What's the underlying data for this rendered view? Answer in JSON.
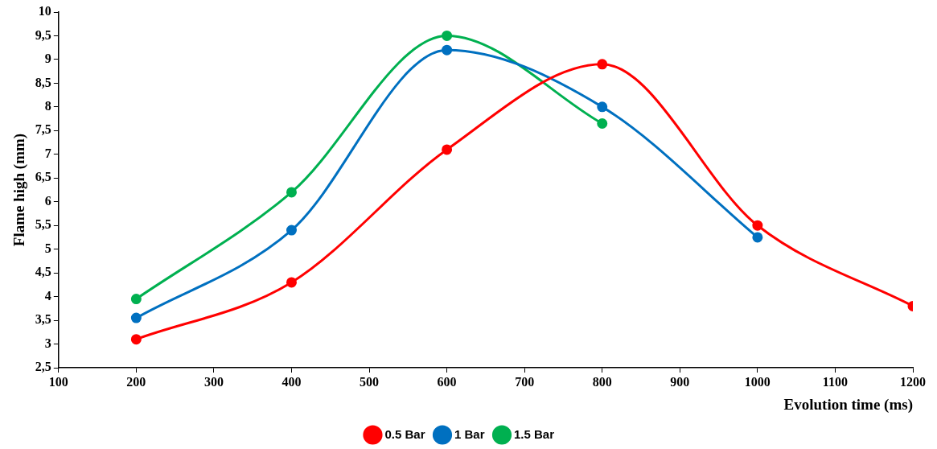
{
  "chart_data": {
    "type": "line",
    "xlabel": "Evolution time (ms)",
    "ylabel": "Flame high (mm)",
    "xlim": [
      100,
      1200
    ],
    "xticks": [
      100,
      200,
      300,
      400,
      500,
      600,
      700,
      800,
      900,
      1000,
      1100,
      1200
    ],
    "ylim": [
      2.5,
      10
    ],
    "yticks": [
      {
        "value": 2.5,
        "label": "2,5"
      },
      3,
      {
        "value": 3.5,
        "label": "3,5"
      },
      4,
      {
        "value": 4.5,
        "label": "4,5"
      },
      5,
      {
        "value": 5.5,
        "label": "5,5"
      },
      6,
      {
        "value": 6.5,
        "label": "6,5"
      },
      7,
      {
        "value": 7.5,
        "label": "7,5"
      },
      8,
      {
        "value": 8.5,
        "label": "8,5"
      },
      9,
      {
        "value": 9.5,
        "label": "9,5"
      },
      10
    ],
    "grid": false,
    "legend": "bottom",
    "marker": "circle",
    "line_style": "solid",
    "series": [
      {
        "name": "0.5 Bar",
        "color": "#ff0000",
        "x": [
          200,
          400,
          600,
          800,
          1000,
          1200
        ],
        "values": [
          3.1,
          4.3,
          7.1,
          8.9,
          5.5,
          3.8
        ]
      },
      {
        "name": "1 Bar",
        "color": "#0070c0",
        "x": [
          200,
          400,
          600,
          800,
          1000
        ],
        "values": [
          3.55,
          5.4,
          9.2,
          8.0,
          5.25
        ]
      },
      {
        "name": "1.5 Bar",
        "color": "#00b050",
        "x": [
          200,
          400,
          600,
          800
        ],
        "values": [
          3.95,
          6.2,
          9.5,
          7.65
        ]
      }
    ]
  }
}
